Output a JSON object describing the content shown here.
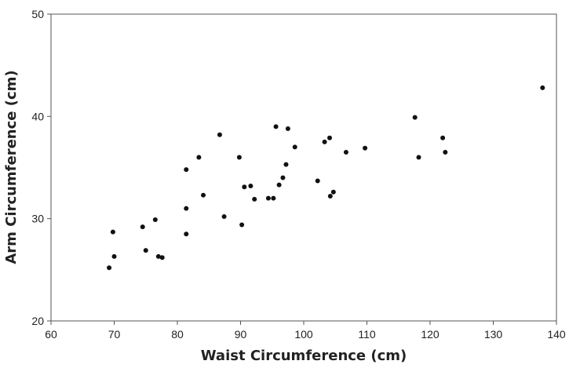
{
  "chart_data": {
    "type": "scatter",
    "xlabel": "Waist Circumference (cm)",
    "ylabel": "Arm Circumference (cm)",
    "xlim": [
      60,
      140
    ],
    "ylim": [
      20,
      50
    ],
    "x_ticks": [
      "60",
      "70",
      "80",
      "90",
      "100",
      "110",
      "120",
      "130",
      "140"
    ],
    "y_ticks": [
      "20",
      "30",
      "40",
      "50"
    ],
    "grid": false,
    "legend": "none",
    "point_color": "#111111",
    "points": [
      {
        "x": 69.2,
        "y": 25.2
      },
      {
        "x": 69.8,
        "y": 28.7
      },
      {
        "x": 70.0,
        "y": 26.3
      },
      {
        "x": 74.5,
        "y": 29.2
      },
      {
        "x": 75.0,
        "y": 26.9
      },
      {
        "x": 76.5,
        "y": 29.9
      },
      {
        "x": 77.0,
        "y": 26.3
      },
      {
        "x": 77.6,
        "y": 26.2
      },
      {
        "x": 81.4,
        "y": 34.8
      },
      {
        "x": 81.4,
        "y": 31.0
      },
      {
        "x": 81.4,
        "y": 28.5
      },
      {
        "x": 83.4,
        "y": 36.0
      },
      {
        "x": 84.1,
        "y": 32.3
      },
      {
        "x": 86.7,
        "y": 38.2
      },
      {
        "x": 87.4,
        "y": 30.2
      },
      {
        "x": 89.8,
        "y": 36.0
      },
      {
        "x": 90.2,
        "y": 29.4
      },
      {
        "x": 90.6,
        "y": 33.1
      },
      {
        "x": 91.6,
        "y": 33.2
      },
      {
        "x": 92.2,
        "y": 31.9
      },
      {
        "x": 94.4,
        "y": 32.0
      },
      {
        "x": 95.2,
        "y": 32.0
      },
      {
        "x": 95.6,
        "y": 39.0
      },
      {
        "x": 96.1,
        "y": 33.3
      },
      {
        "x": 96.7,
        "y": 34.0
      },
      {
        "x": 97.2,
        "y": 35.3
      },
      {
        "x": 97.5,
        "y": 38.8
      },
      {
        "x": 98.6,
        "y": 37.0
      },
      {
        "x": 102.2,
        "y": 33.7
      },
      {
        "x": 103.3,
        "y": 37.5
      },
      {
        "x": 104.1,
        "y": 37.9
      },
      {
        "x": 104.2,
        "y": 32.2
      },
      {
        "x": 104.7,
        "y": 32.6
      },
      {
        "x": 106.7,
        "y": 36.5
      },
      {
        "x": 109.7,
        "y": 36.9
      },
      {
        "x": 117.6,
        "y": 39.9
      },
      {
        "x": 118.2,
        "y": 36.0
      },
      {
        "x": 122.0,
        "y": 37.9
      },
      {
        "x": 122.4,
        "y": 36.5
      },
      {
        "x": 137.8,
        "y": 42.8
      }
    ]
  }
}
